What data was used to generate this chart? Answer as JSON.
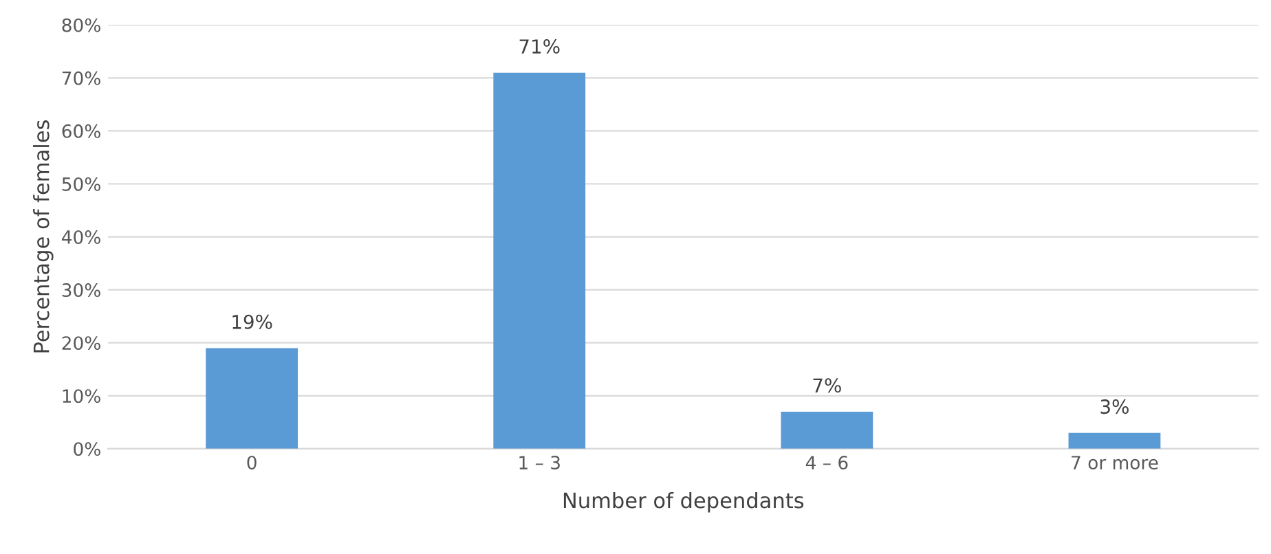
{
  "chart_data": {
    "type": "bar",
    "categories": [
      "0",
      "1 – 3",
      "4 – 6",
      "7 or more"
    ],
    "values": [
      19,
      71,
      7,
      3
    ],
    "value_labels": [
      "19%",
      "71%",
      "7%",
      "3%"
    ],
    "color": "#5b9bd5",
    "xlabel": "Number of dependants",
    "ylabel": "Percentage of females",
    "ylim": [
      0,
      80
    ],
    "yticks": [
      {
        "value": 0,
        "label": "0%"
      },
      {
        "value": 10,
        "label": "10%"
      },
      {
        "value": 20,
        "label": "20%"
      },
      {
        "value": 30,
        "label": "30%"
      },
      {
        "value": 40,
        "label": "40%"
      },
      {
        "value": 50,
        "label": "50%"
      },
      {
        "value": 60,
        "label": "60%"
      },
      {
        "value": 70,
        "label": "70%"
      },
      {
        "value": 80,
        "label": "80%"
      }
    ],
    "grid": "y",
    "legend": false
  }
}
